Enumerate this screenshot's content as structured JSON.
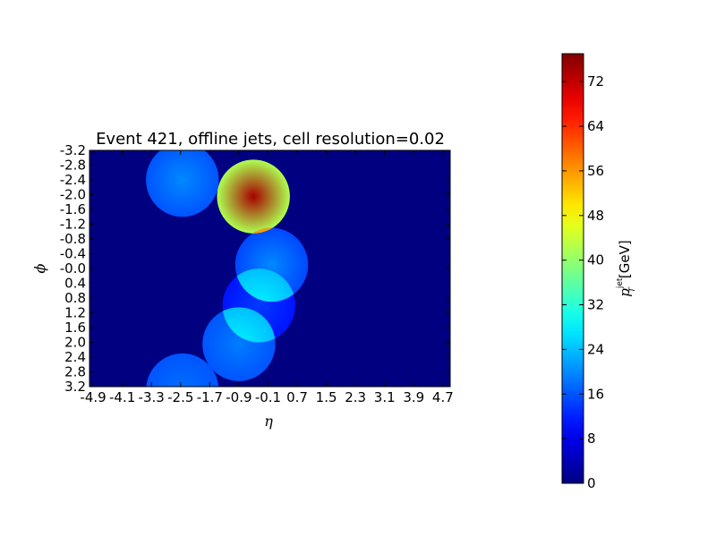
{
  "chart_data": {
    "type": "heatmap",
    "title": "Event 421, offline jets, cell resolution=0.02",
    "xlabel": "η",
    "ylabel": "ϕ",
    "xlim": [
      -5.0,
      4.9
    ],
    "ylim": [
      -3.2,
      3.2
    ],
    "y_inverted": true,
    "x_ticks": [
      "-4.9",
      "-4.1",
      "-3.3",
      "-2.5",
      "-1.7",
      "-0.9",
      "-0.1",
      "0.7",
      "1.5",
      "2.3",
      "3.1",
      "3.9",
      "4.7"
    ],
    "x_tick_values": [
      -4.9,
      -4.1,
      -3.3,
      -2.5,
      -1.7,
      -0.9,
      -0.1,
      0.7,
      1.5,
      2.3,
      3.1,
      3.9,
      4.7
    ],
    "y_ticks": [
      "-3.2",
      "-2.8",
      "-2.4",
      "-2.0",
      "-1.6",
      "-1.2",
      "-0.8",
      "-0.4",
      "-0.0",
      "0.4",
      "0.8",
      "1.2",
      "1.6",
      "2.0",
      "2.4",
      "2.8",
      "3.2"
    ],
    "y_tick_values": [
      -3.2,
      -2.8,
      -2.4,
      -2.0,
      -1.6,
      -1.2,
      -0.8,
      -0.4,
      0.0,
      0.4,
      0.8,
      1.2,
      1.6,
      2.0,
      2.4,
      2.8,
      3.2
    ],
    "colorbar": {
      "label_main": "p",
      "label_sub": "T",
      "label_sup": "jet",
      "label_unit": "[GeV]",
      "ticks": [
        "0",
        "8",
        "16",
        "24",
        "32",
        "40",
        "48",
        "56",
        "64",
        "72"
      ],
      "tick_values": [
        0,
        8,
        16,
        24,
        32,
        40,
        48,
        56,
        64,
        72
      ],
      "range": [
        0,
        77
      ],
      "colormap": "jet"
    },
    "jets": [
      {
        "eta": -2.45,
        "phi": -2.4,
        "radius": 1.0,
        "pt_center": 20,
        "pt_edge": 16
      },
      {
        "eta": -0.5,
        "phi": -1.95,
        "radius": 1.0,
        "pt_center": 74,
        "pt_edge": 42
      },
      {
        "eta": 0.0,
        "phi": -0.1,
        "radius": 1.0,
        "pt_center": 20,
        "pt_edge": 15
      },
      {
        "eta": -0.35,
        "phi": 1.0,
        "radius": 1.0,
        "pt_center": 14,
        "pt_edge": 11
      },
      {
        "eta": -0.9,
        "phi": 2.05,
        "radius": 1.0,
        "pt_center": 19,
        "pt_edge": 16
      },
      {
        "eta": -2.45,
        "phi": 3.3,
        "radius": 1.0,
        "pt_center": 18,
        "pt_edge": 16
      }
    ],
    "overlaps": [
      {
        "a": 1,
        "b": 2,
        "pt_center": 74,
        "pt_edge": 55
      },
      {
        "a": 2,
        "b": 3,
        "pt_center": 28,
        "pt_edge": 24
      },
      {
        "a": 3,
        "b": 4,
        "pt_center": 28,
        "pt_edge": 24
      },
      {
        "a": 0,
        "b": 1,
        "pt_center": 48,
        "pt_edge": 40
      }
    ]
  }
}
